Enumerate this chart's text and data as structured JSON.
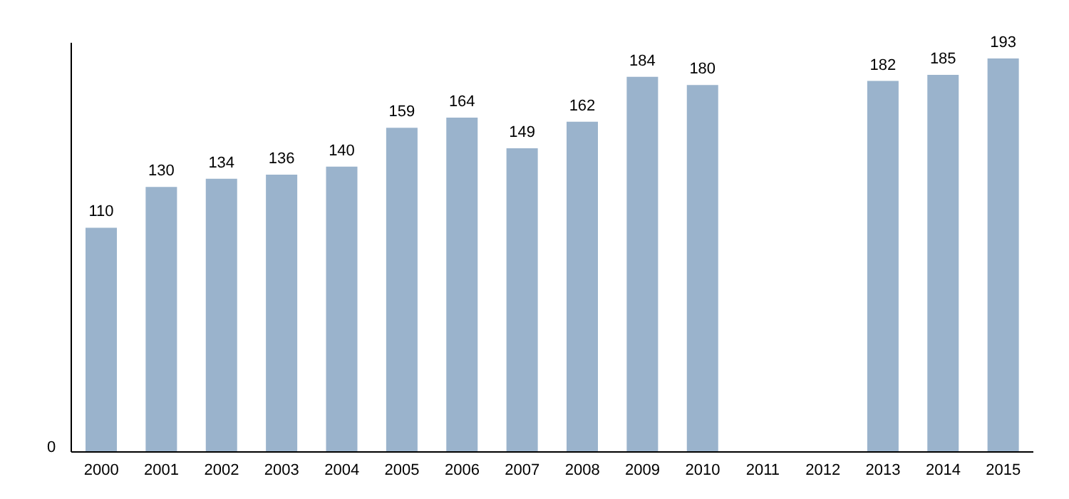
{
  "chart_data": {
    "type": "bar",
    "categories": [
      "2000",
      "2001",
      "2002",
      "2003",
      "2004",
      "2005",
      "2006",
      "2007",
      "2008",
      "2009",
      "2010",
      "2011",
      "2012",
      "2013",
      "2014",
      "2015"
    ],
    "values": [
      110,
      130,
      134,
      136,
      140,
      159,
      164,
      149,
      162,
      184,
      180,
      null,
      null,
      182,
      185,
      193
    ],
    "color": "#9ab3cc",
    "annotations": [
      "0"
    ],
    "data_labels": true,
    "grid": false,
    "legend": false
  }
}
